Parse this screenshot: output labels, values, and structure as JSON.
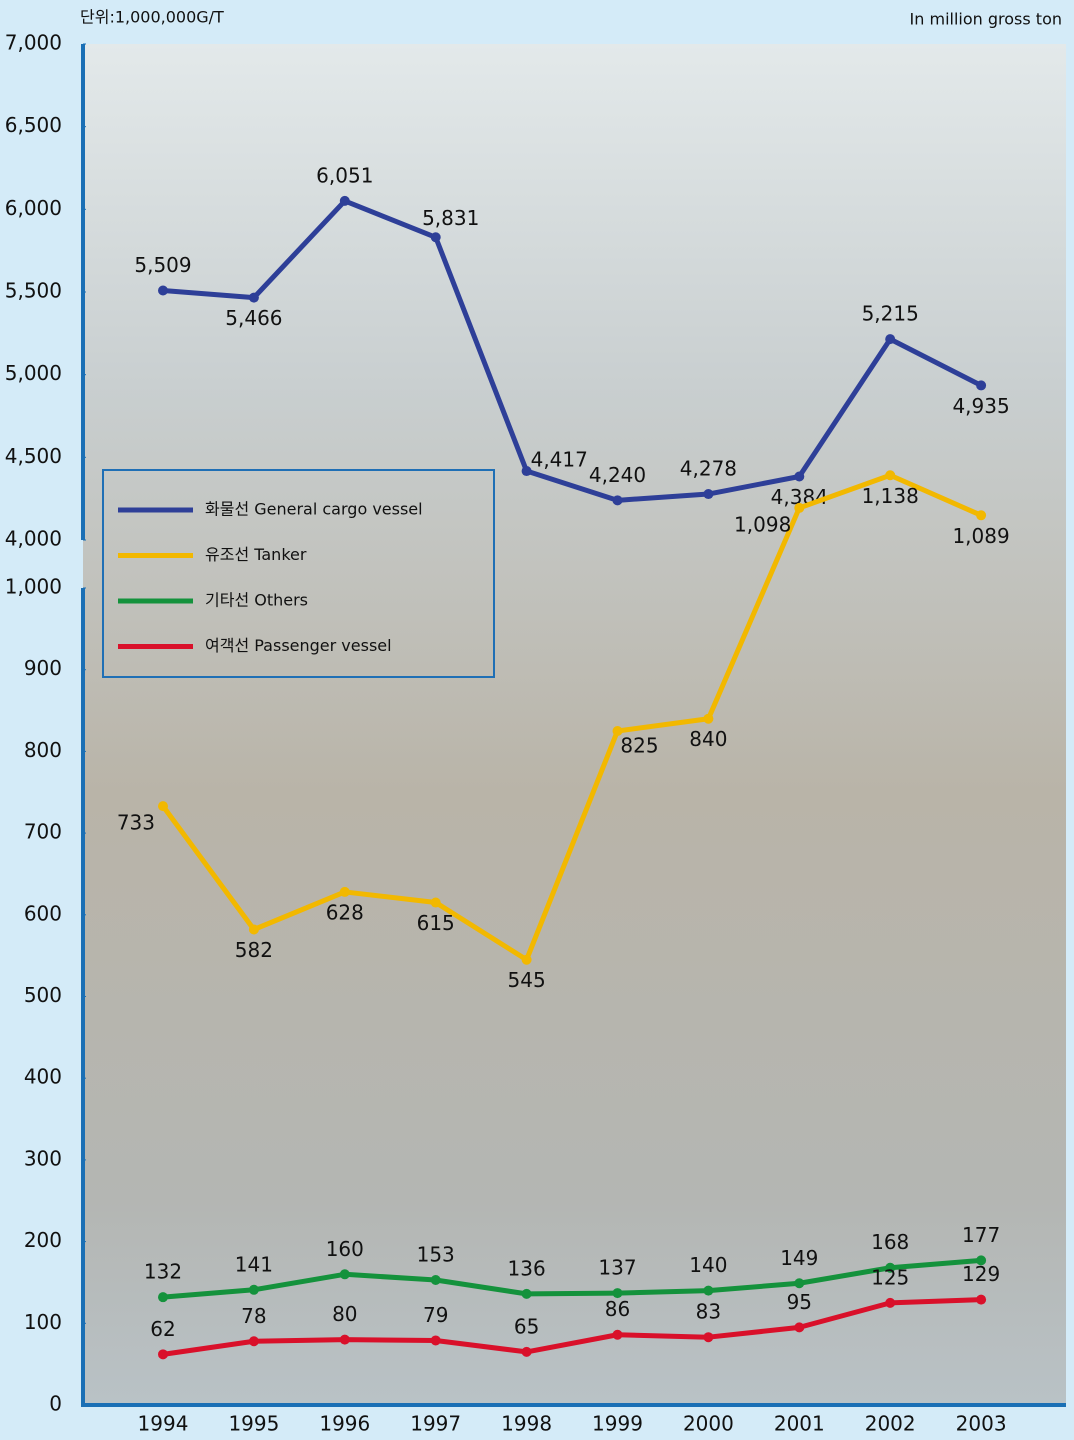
{
  "chart_data": [
    {
      "type": "line",
      "unit_label": "단위:1,000,000G/T",
      "unit_label_en": "In million gross ton",
      "ylim": [
        4000,
        7000
      ],
      "yticks": [
        {
          "value": 4000,
          "label": "4,000"
        },
        {
          "value": 4500,
          "label": "4,500"
        },
        {
          "value": 5000,
          "label": "5,000"
        },
        {
          "value": 5500,
          "label": "5,500"
        },
        {
          "value": 6000,
          "label": "6,000"
        },
        {
          "value": 6500,
          "label": "6,500"
        },
        {
          "value": 7000,
          "label": "7,000"
        }
      ],
      "series": [
        {
          "name": "화물선 General cargo vessel",
          "color": "#2e3f98",
          "values": [
            5509,
            5466,
            6051,
            5831,
            4417,
            4240,
            4278,
            4384,
            5215,
            4935
          ],
          "value_labels": [
            "5,509",
            "5,466",
            "6,051",
            "5,831",
            "4,417",
            "4,240",
            "4,278",
            "4,384",
            "5,215",
            "4,935"
          ]
        }
      ]
    },
    {
      "type": "line",
      "categories": [
        "1994",
        "1995",
        "1996",
        "1997",
        "1998",
        "1999",
        "2000",
        "2001",
        "2002",
        "2003"
      ],
      "ylim": [
        0,
        1000
      ],
      "yticks": [
        0,
        100,
        200,
        300,
        400,
        500,
        600,
        700,
        800,
        900,
        {
          "value": 1000,
          "label": "1,000"
        }
      ],
      "series": [
        {
          "name": "유조선 Tanker",
          "color": "#f2b800",
          "values": [
            733,
            582,
            628,
            615,
            545,
            825,
            840,
            1098,
            1138,
            1089
          ],
          "value_labels": [
            "733",
            "582",
            "628",
            "615",
            "545",
            "825",
            "840",
            "1,098",
            "1,138",
            "1,089"
          ]
        },
        {
          "name": "기타선 Others",
          "color": "#14923c",
          "values": [
            132,
            141,
            160,
            153,
            136,
            137,
            140,
            149,
            168,
            177
          ]
        },
        {
          "name": "여객선 Passenger vessel",
          "color": "#d9102a",
          "values": [
            62,
            78,
            80,
            79,
            65,
            86,
            83,
            95,
            125,
            129
          ]
        }
      ]
    }
  ]
}
